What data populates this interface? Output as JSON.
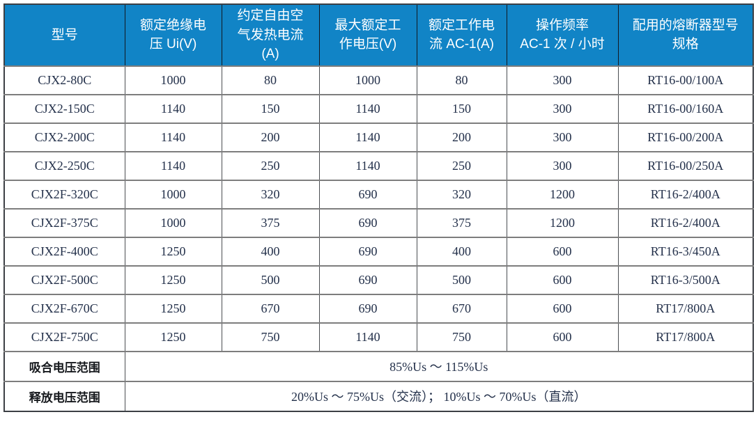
{
  "table": {
    "accent_color": "#1184c6",
    "grid_color": "#7d7d7d",
    "headers": [
      "型号",
      "额定绝缘电\n压 Ui(V)",
      "约定自由空\n气发热电流\n(A)",
      "最大额定工\n作电压(V)",
      "额定工作电\n流 AC-1(A)",
      "操作频率\nAC-1 次 / 小时",
      "配用的熔断器型号\n规格"
    ],
    "rows": [
      [
        "CJX2-80C",
        "1000",
        "80",
        "1000",
        "80",
        "300",
        "RT16-00/100A"
      ],
      [
        "CJX2-150C",
        "1140",
        "150",
        "1140",
        "150",
        "300",
        "RT16-00/160A"
      ],
      [
        "CJX2-200C",
        "1140",
        "200",
        "1140",
        "200",
        "300",
        "RT16-00/200A"
      ],
      [
        "CJX2-250C",
        "1140",
        "250",
        "1140",
        "250",
        "300",
        "RT16-00/250A"
      ],
      [
        "CJX2F-320C",
        "1000",
        "320",
        "690",
        "320",
        "1200",
        "RT16-2/400A"
      ],
      [
        "CJX2F-375C",
        "1000",
        "375",
        "690",
        "375",
        "1200",
        "RT16-2/400A"
      ],
      [
        "CJX2F-400C",
        "1250",
        "400",
        "690",
        "400",
        "600",
        "RT16-3/450A"
      ],
      [
        "CJX2F-500C",
        "1250",
        "500",
        "690",
        "500",
        "600",
        "RT16-3/500A"
      ],
      [
        "CJX2F-670C",
        "1250",
        "670",
        "690",
        "670",
        "600",
        "RT17/800A"
      ],
      [
        "CJX2F-750C",
        "1250",
        "750",
        "1140",
        "750",
        "600",
        "RT17/800A"
      ]
    ],
    "footer_rows": [
      {
        "label": "吸合电压范围",
        "value": "85%Us ～ 115%Us"
      },
      {
        "label": "释放电压范围",
        "value": "20%Us ～ 75%Us（交流）； 10%Us ～ 70%Us（直流）"
      }
    ]
  }
}
